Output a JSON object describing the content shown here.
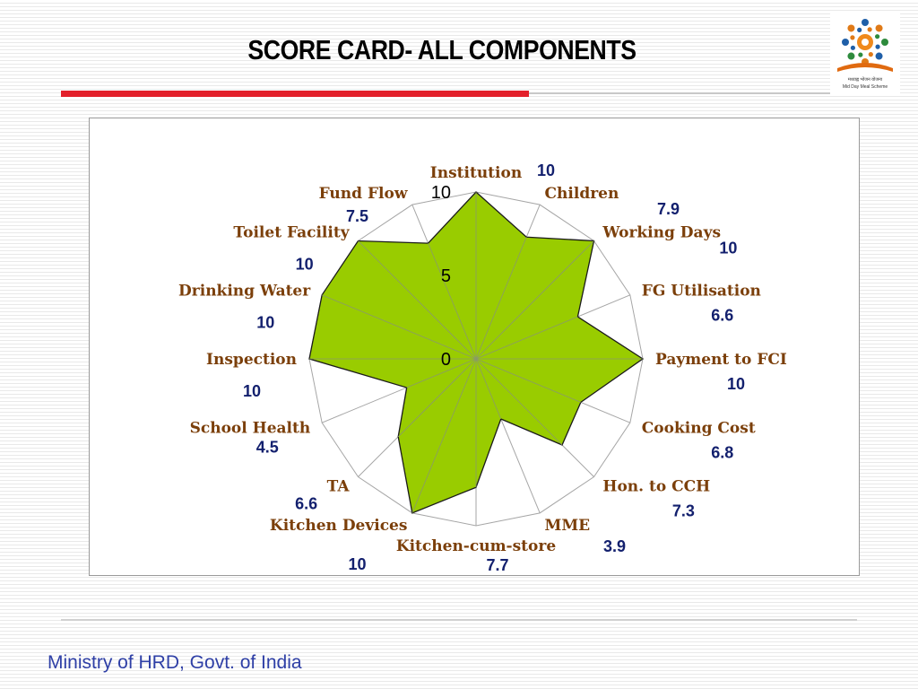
{
  "title": "SCORE CARD- ALL COMPONENTS",
  "footer": "Ministry of HRD, Govt. of India",
  "logo": {
    "name": "mid-day-meal-logo",
    "caption_hindi": "मध्याह्न भोजन योजना",
    "caption_english": "Mid Day Meal Scheme"
  },
  "colors": {
    "fill": "#99cc00",
    "grid": "#a6a6a6",
    "category_text": "#7b3f0a",
    "value_text": "#13206e",
    "title_rule": "#e3202b",
    "footer_text": "#2e3fa6"
  },
  "chart_data": {
    "type": "radar",
    "rlim": [
      0,
      10
    ],
    "ticks": [
      "0",
      "5",
      "10"
    ],
    "grid": true,
    "legend": "none",
    "categories": [
      "Institution",
      "Children",
      "Working Days",
      "FG Utilisation",
      "Payment to FCI",
      "Cooking Cost",
      "Hon. to CCH",
      "MME",
      "Kitchen-cum-store",
      "Kitchen Devices",
      "TA",
      "School Health",
      "Inspection",
      "Drinking Water",
      "Toilet Facility",
      "Fund Flow"
    ],
    "values": [
      10,
      7.9,
      10,
      6.6,
      10,
      6.8,
      7.3,
      3.9,
      7.7,
      10,
      6.6,
      4.5,
      10,
      10,
      10,
      7.5
    ],
    "value_labels": [
      "10",
      "7.9",
      "10",
      "6.6",
      "10",
      "6.8",
      "7.3",
      "3.9",
      "7.7",
      "10",
      "6.6",
      "4.5",
      "10",
      "10",
      "10",
      "7.5"
    ]
  }
}
